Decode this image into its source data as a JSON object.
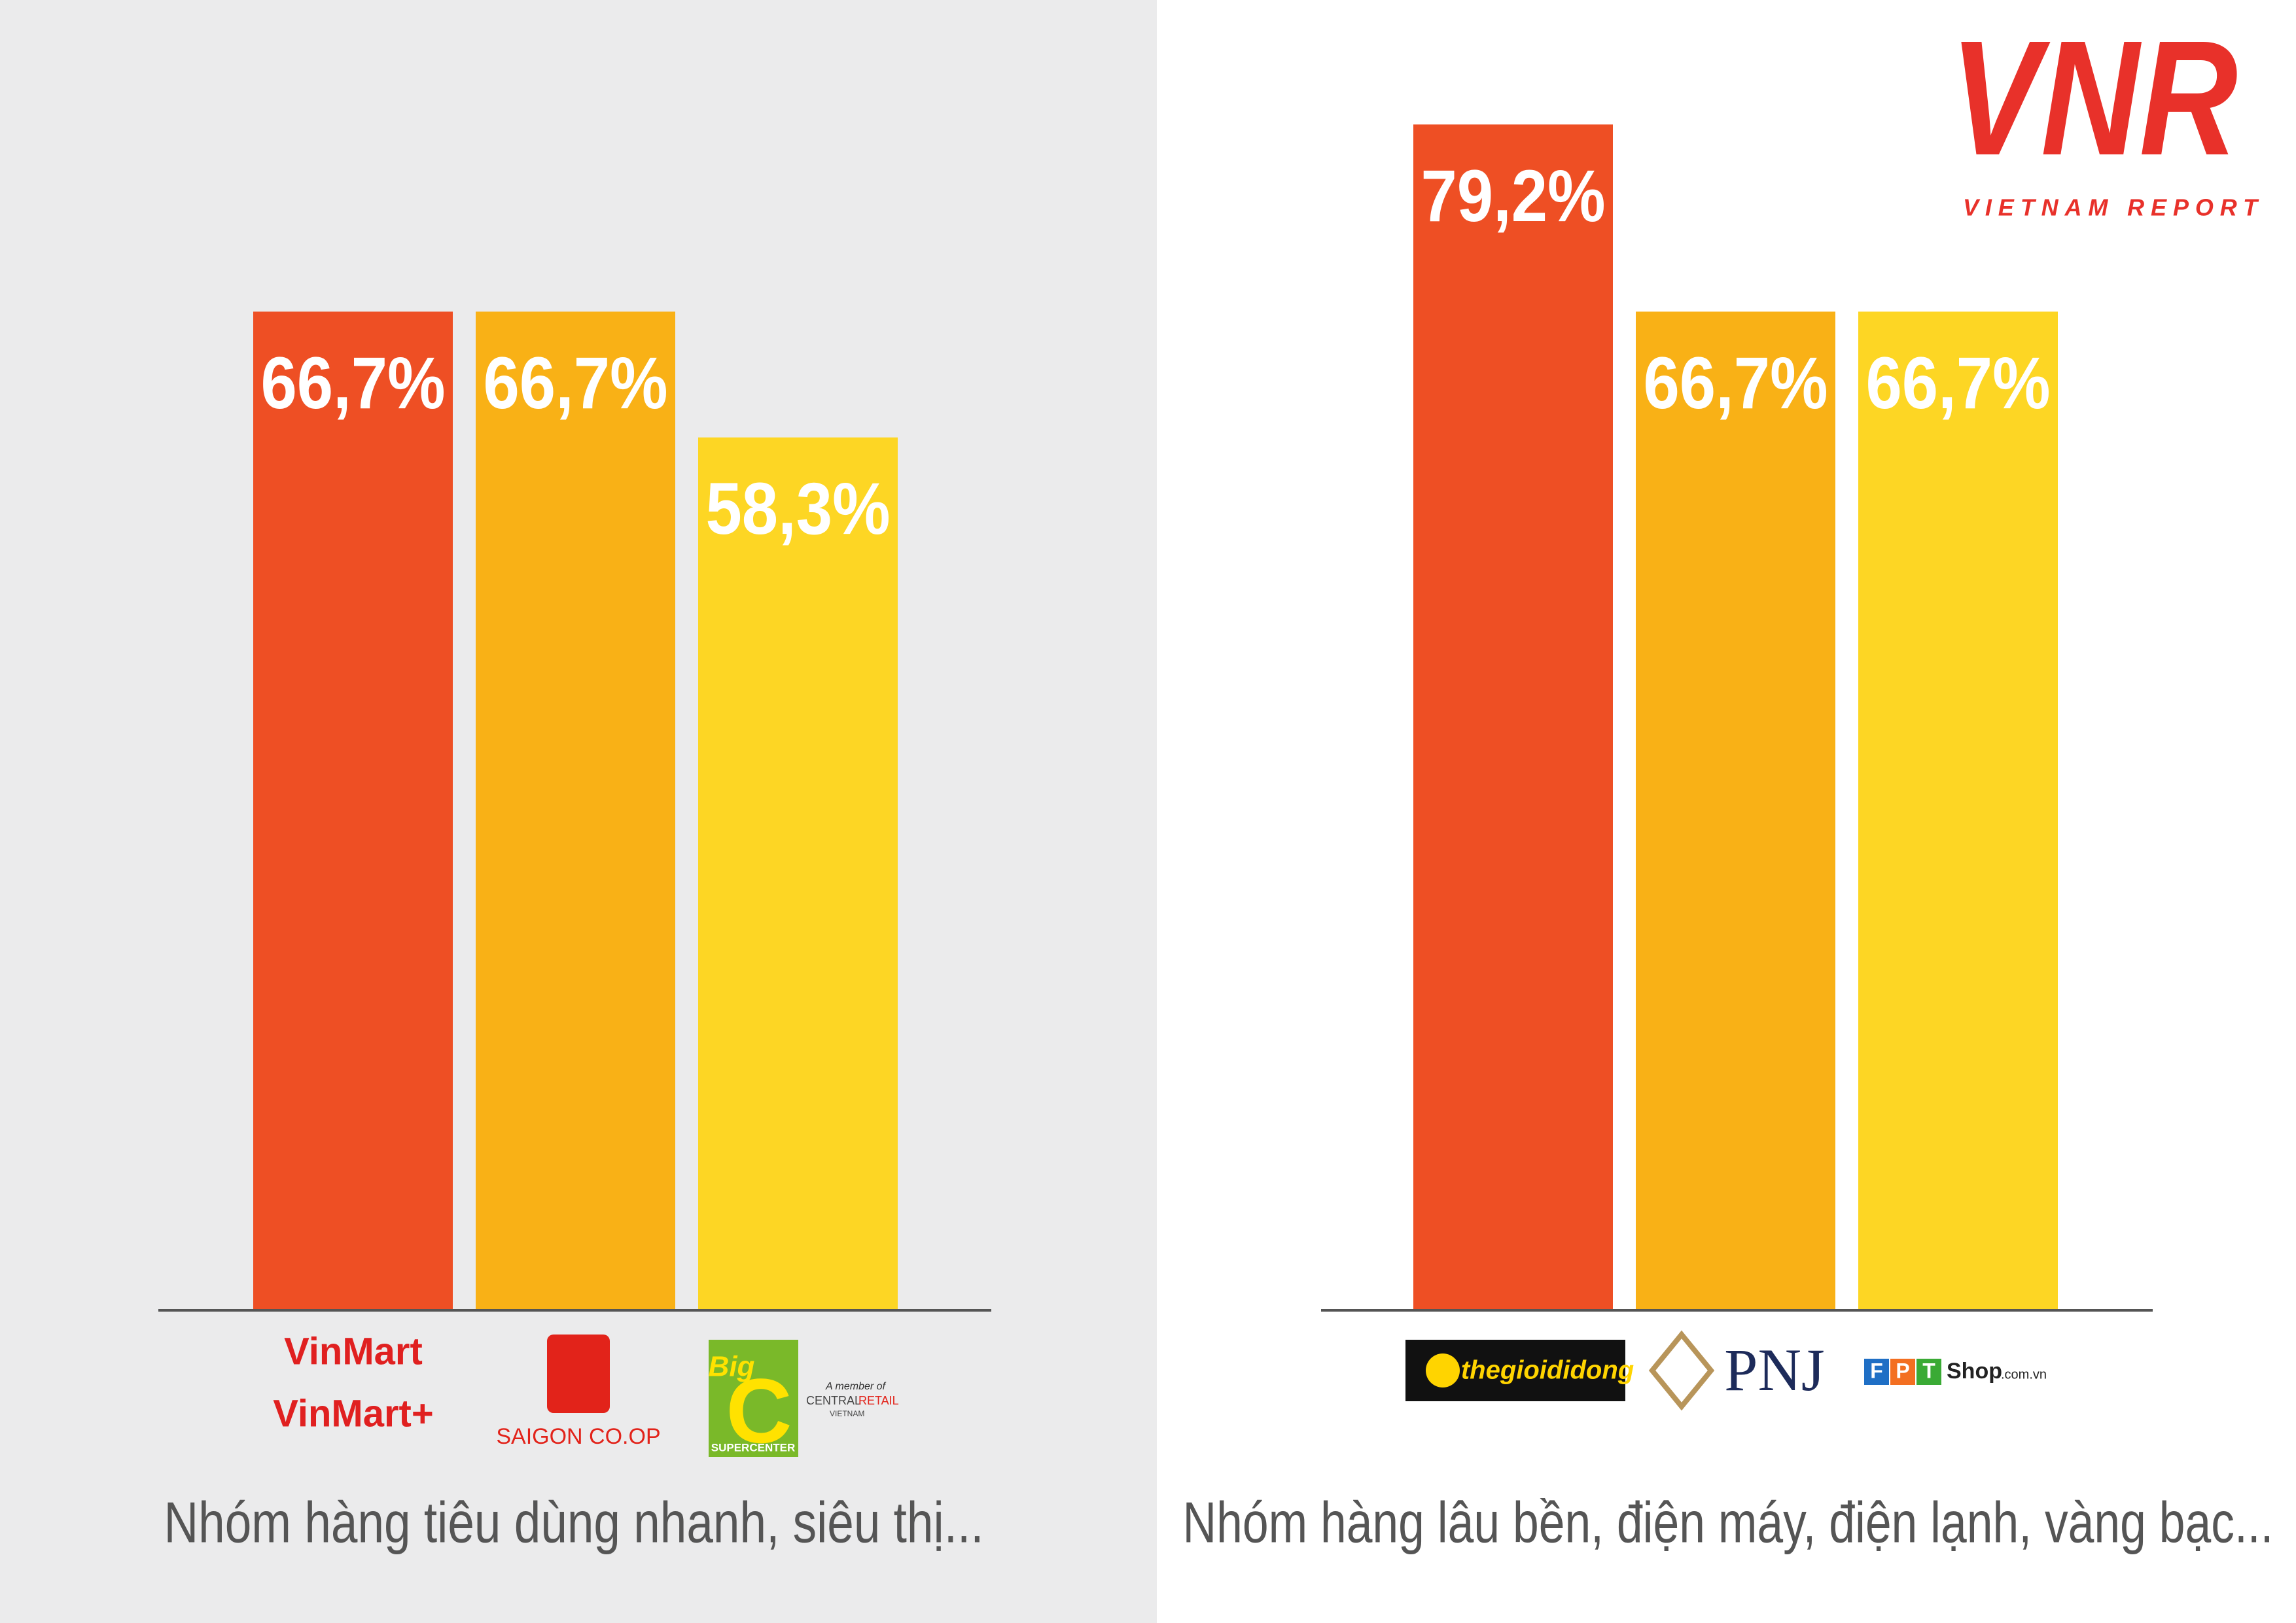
{
  "chart_data": [
    {
      "type": "bar",
      "x_label": "Nhóm hàng tiêu dùng nhanh, siêu thị...",
      "categories": [
        [
          "VinMart",
          "VinMart+"
        ],
        [
          "SAIGON CO.OP"
        ],
        [
          "Big",
          "C",
          "SUPERCENTER",
          "A member of",
          "CENTRAL",
          "RETAIL",
          "VIETNAM"
        ]
      ],
      "values": [
        66.7,
        66.7,
        58.3
      ],
      "value_labels": [
        "66,7%",
        "66,7%",
        "58,3%"
      ],
      "colors": [
        "#ee4f24",
        "#f9b116",
        "#fdd624"
      ],
      "ylim": [
        0,
        80
      ]
    },
    {
      "type": "bar",
      "x_label": "Nhóm hàng lâu bền, điện máy, điện lạnh, vàng bạc...",
      "categories": [
        [
          "thegioididong"
        ],
        [
          "PNJ"
        ],
        [
          "F",
          "P",
          "T",
          "Shop",
          ".com.vn"
        ]
      ],
      "values": [
        79.2,
        66.7,
        66.7
      ],
      "value_labels": [
        "79,2%",
        "66,7%",
        "66,7%"
      ],
      "colors": [
        "#ee4f24",
        "#f9b116",
        "#fdd624"
      ],
      "ylim": [
        0,
        80
      ]
    }
  ],
  "logo": {
    "mark": "VNR",
    "name": "VIETNAM REPORT"
  }
}
